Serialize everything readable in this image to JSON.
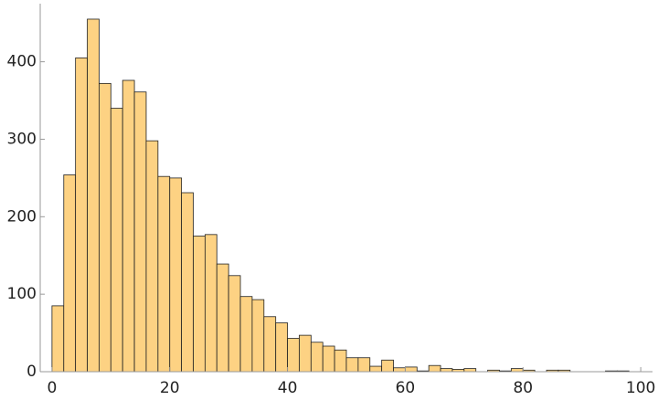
{
  "chart_data": {
    "type": "histogram",
    "bins": [
      0,
      2,
      4,
      6,
      8,
      10,
      12,
      14,
      16,
      18,
      20,
      22,
      24,
      26,
      28,
      30,
      32,
      34,
      36,
      38,
      40,
      42,
      44,
      46,
      48,
      50,
      52,
      54,
      56,
      58,
      60,
      62,
      64,
      66,
      68,
      70,
      72,
      74,
      76,
      78,
      80,
      82,
      84,
      86,
      88,
      90,
      92,
      94,
      96,
      98,
      100
    ],
    "counts": [
      85,
      254,
      405,
      455,
      372,
      340,
      376,
      361,
      298,
      252,
      250,
      231,
      175,
      177,
      139,
      124,
      97,
      93,
      71,
      63,
      43,
      47,
      38,
      33,
      28,
      18,
      18,
      7,
      15,
      5,
      6,
      1,
      8,
      4,
      3,
      4,
      0,
      2,
      1,
      4,
      2,
      0,
      2,
      2,
      0,
      0,
      0,
      1,
      1,
      0
    ],
    "color": "#fdd283",
    "xlim": [
      -2,
      102
    ],
    "ylim": [
      0,
      475
    ],
    "xticks": [
      0,
      20,
      40,
      60,
      80,
      100
    ],
    "yticks": [
      0,
      100,
      200,
      300,
      400
    ]
  }
}
